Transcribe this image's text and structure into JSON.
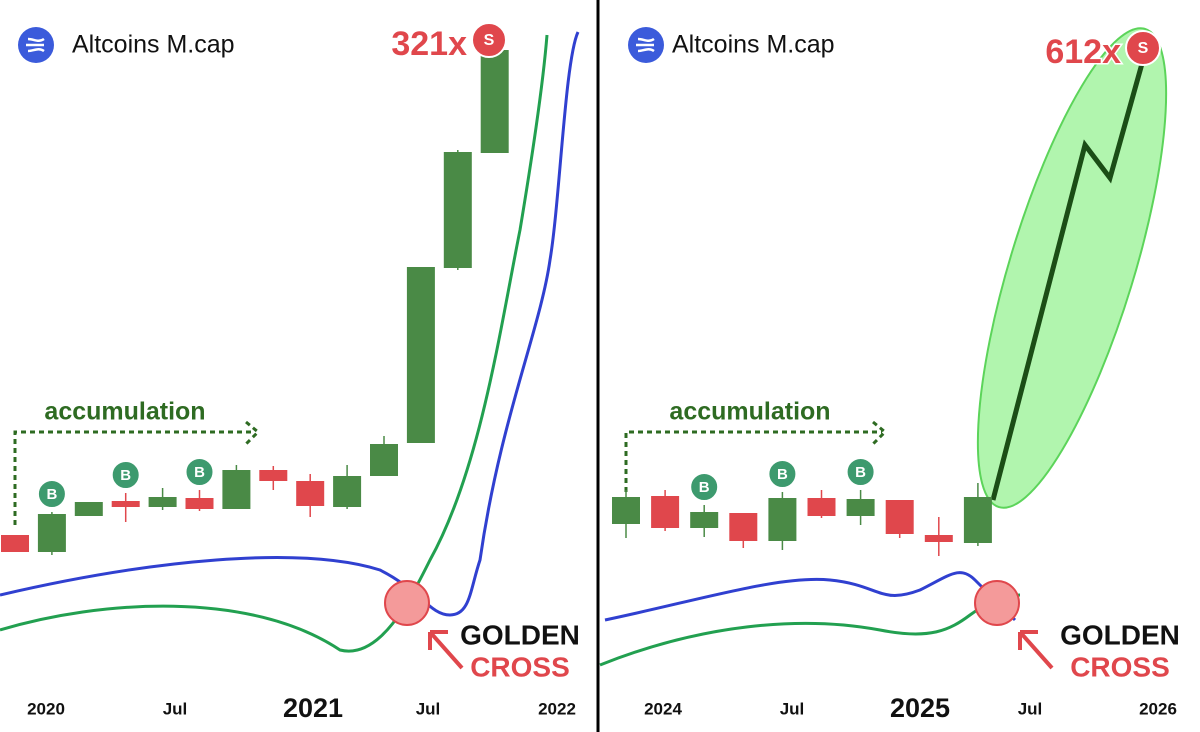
{
  "chart_data": [
    {
      "type": "candlestick",
      "title": "Altcoins M.cap",
      "multiplier": "321x",
      "sell_label": "S",
      "buy_label": "B",
      "annotation": "accumulation",
      "cross_labels": [
        "GOLDEN",
        "CROSS"
      ],
      "x_labels": [
        "2020",
        "Jul",
        "2021",
        "Jul",
        "2022"
      ],
      "ylim": [
        0,
        690
      ],
      "open": [
        155,
        138,
        174,
        189,
        183,
        192,
        181,
        220,
        209,
        183,
        214,
        247,
        422,
        537
      ],
      "high": [
        155,
        178,
        188,
        197,
        202,
        200,
        225,
        224,
        216,
        225,
        254,
        423,
        540,
        650
      ],
      "low": [
        138,
        135,
        174,
        168,
        180,
        179,
        181,
        200,
        173,
        181,
        214,
        247,
        420,
        537
      ],
      "close": [
        138,
        176,
        188,
        183,
        193,
        181,
        220,
        209,
        184,
        214,
        246,
        423,
        538,
        640
      ],
      "up_color": "#4a8a46",
      "down_color": "#e0474c"
    },
    {
      "type": "candlestick",
      "title": "Altcoins M.cap",
      "multiplier": "612x",
      "sell_label": "S",
      "buy_label": "B",
      "annotation": "accumulation",
      "cross_labels": [
        "GOLDEN",
        "CROSS"
      ],
      "x_labels": [
        "2024",
        "Jul",
        "2025",
        "Jul",
        "2026"
      ],
      "ylim": [
        0,
        690
      ],
      "open": [
        166,
        194,
        162,
        177,
        149,
        192,
        174,
        190,
        155,
        147
      ],
      "high": [
        200,
        200,
        185,
        177,
        198,
        200,
        200,
        190,
        173,
        207
      ],
      "low": [
        152,
        159,
        153,
        142,
        140,
        172,
        165,
        152,
        134,
        144
      ],
      "close": [
        193,
        162,
        178,
        149,
        192,
        174,
        191,
        156,
        148,
        193
      ],
      "up_color": "#4a8a46",
      "down_color": "#e0474c"
    }
  ]
}
